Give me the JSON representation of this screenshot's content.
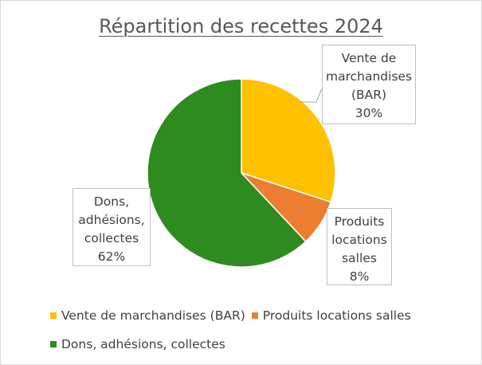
{
  "chart_data": {
    "type": "pie",
    "title": "Répartition des recettes 2024",
    "slices": [
      {
        "label": "Vente de marchandises (BAR)",
        "callout_lines": [
          "Vente de",
          "marchandises",
          "(BAR)"
        ],
        "value": 30,
        "pct_label": "30%",
        "color": "#ffc000"
      },
      {
        "label": "Produits locations salles",
        "callout_lines": [
          "Produits",
          "locations",
          "salles"
        ],
        "value": 8,
        "pct_label": "8%",
        "color": "#ed7d31"
      },
      {
        "label": "Dons, adhésions, collectes",
        "callout_lines": [
          "Dons,",
          "adhésions,",
          "collectes"
        ],
        "value": 62,
        "pct_label": "62%",
        "color": "#2e8b1f"
      }
    ],
    "legend_position": "bottom",
    "start_angle": "12 o'clock, clockwise"
  }
}
